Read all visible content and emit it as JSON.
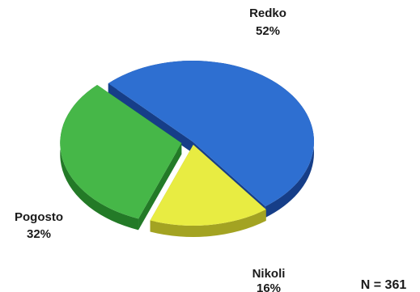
{
  "chart_data": {
    "type": "pie",
    "style": "3d-exploded",
    "slices": [
      {
        "label": "Redko",
        "value": 52,
        "value_label": "52%",
        "color": "#2e6fd1",
        "side_color": "#163e88"
      },
      {
        "label": "Nikoli",
        "value": 16,
        "value_label": "16%",
        "color": "#e8ec42",
        "side_color": "#a3a322"
      },
      {
        "label": "Pogosto",
        "value": 32,
        "value_label": "32%",
        "color": "#46b748",
        "side_color": "#237a27"
      }
    ],
    "note": "N = 361"
  }
}
